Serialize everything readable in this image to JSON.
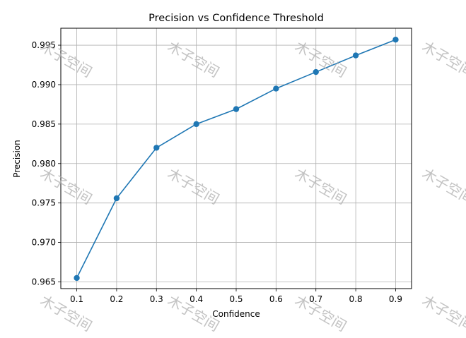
{
  "chart_data": {
    "type": "line",
    "title": "Precision vs Confidence Threshold",
    "xlabel": "Confidence",
    "ylabel": "Precision",
    "x": [
      0.1,
      0.2,
      0.3,
      0.4,
      0.5,
      0.6,
      0.7,
      0.8,
      0.9
    ],
    "series": [
      {
        "values": [
          0.9655,
          0.9756,
          0.982,
          0.985,
          0.9869,
          0.9895,
          0.9916,
          0.9937,
          0.9957
        ],
        "color": "#1f77b4"
      }
    ],
    "xticks": [
      "0.1",
      "0.2",
      "0.3",
      "0.4",
      "0.5",
      "0.6",
      "0.7",
      "0.8",
      "0.9"
    ],
    "yticks": [
      "0.965",
      "0.970",
      "0.975",
      "0.980",
      "0.985",
      "0.990",
      "0.995"
    ],
    "xlim": [
      0.06,
      0.94
    ],
    "ylim": [
      0.96415,
      0.99715
    ],
    "grid": true,
    "marker": "circle"
  },
  "watermark": {
    "text": "木子空间",
    "color": "#b0b0b0"
  }
}
